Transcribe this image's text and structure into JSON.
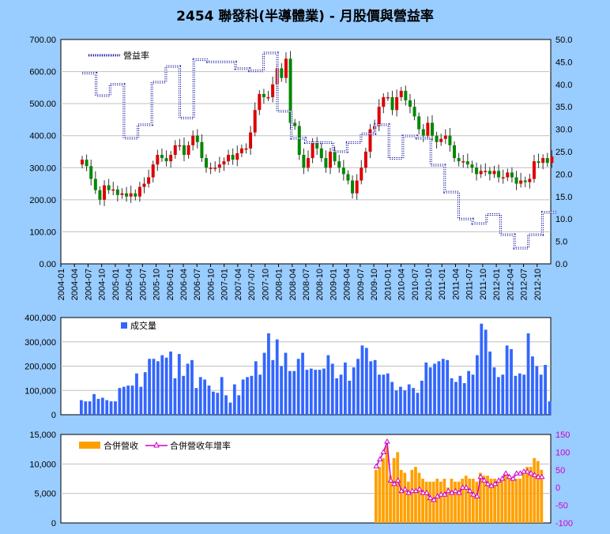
{
  "title": "2454 聯發科(半導體業) - 月股價與營益率",
  "chart_data": [
    {
      "type": "candlestick",
      "x_labels": [
        "2004-01",
        "2004-04",
        "2004-07",
        "2004-10",
        "2005-01",
        "2005-04",
        "2005-07",
        "2005-10",
        "2006-01",
        "2006-04",
        "2006-07",
        "2006-10",
        "2007-01",
        "2007-04",
        "2007-07",
        "2007-10",
        "2008-01",
        "2008-04",
        "2008-07",
        "2008-10",
        "2009-01",
        "2009-04",
        "2009-07",
        "2009-10",
        "2010-01",
        "2010-04",
        "2010-07",
        "2010-10",
        "2011-01",
        "2011-04",
        "2011-07",
        "2011-10",
        "2012-01",
        "2012-04",
        "2012-07",
        "2012-10"
      ],
      "y_ticks": [
        "0.00",
        "100.00",
        "200.00",
        "300.00",
        "400.00",
        "500.00",
        "600.00",
        "700.00"
      ],
      "ylim": [
        0,
        700
      ],
      "y2_ticks": [
        "0.0",
        "5.0",
        "10.0",
        "15.0",
        "20.0",
        "25.0",
        "30.0",
        "35.0",
        "40.0",
        "45.0",
        "50.0"
      ],
      "y2lim": [
        0,
        50
      ],
      "colors": {
        "up": "#dd0000",
        "down": "#008800",
        "margin_line": "#000099"
      },
      "closes": [
        325,
        305,
        265,
        230,
        200,
        245,
        230,
        232,
        215,
        220,
        210,
        220,
        210,
        240,
        250,
        270,
        310,
        340,
        330,
        320,
        340,
        370,
        370,
        340,
        370,
        400,
        380,
        330,
        300,
        300,
        300,
        310,
        320,
        340,
        325,
        345,
        360,
        360,
        410,
        480,
        530,
        520,
        520,
        560,
        610,
        580,
        640,
        440,
        430,
        340,
        300,
        330,
        380,
        360,
        330,
        300,
        350,
        320,
        300,
        280,
        260,
        220,
        260,
        300,
        350,
        420,
        430,
        490,
        520,
        520,
        480,
        520,
        540,
        510,
        490,
        460,
        420,
        400,
        440,
        400,
        380,
        390,
        400,
        370,
        330,
        320,
        320,
        310,
        300,
        280,
        290,
        290,
        280,
        290,
        270,
        270,
        285,
        270,
        250,
        260,
        255,
        265,
        320,
        315,
        330,
        315,
        335
      ],
      "margin_label": "營益率",
      "margin_values": [
        42.5,
        42.5,
        37.5,
        37.5,
        40,
        40,
        28,
        28,
        31,
        31,
        40.5,
        40.5,
        44,
        44,
        32.5,
        32.5,
        45.5,
        45.5,
        45,
        45,
        45,
        45,
        43.5,
        43.5,
        43,
        43,
        47,
        47,
        34,
        34,
        28,
        28,
        27,
        27,
        27,
        27,
        25,
        25,
        27,
        27,
        29,
        29,
        31,
        31,
        23.5,
        23.5,
        28.5,
        28.5,
        28,
        28,
        22,
        22,
        16,
        16,
        10,
        10,
        9,
        9,
        11,
        11,
        6.5,
        6.5,
        3.5,
        3.5,
        6.5,
        6.5,
        11.5,
        11.5
      ]
    },
    {
      "type": "bar",
      "label": "成交量",
      "y_ticks": [
        "0",
        "100,000",
        "200,000",
        "300,000",
        "400,000"
      ],
      "ylim": [
        0,
        400000
      ],
      "color": "#3366ff",
      "values": [
        60000,
        55000,
        55000,
        85000,
        65000,
        70000,
        60000,
        55000,
        55000,
        110000,
        115000,
        120000,
        120000,
        170000,
        115000,
        175000,
        230000,
        230000,
        220000,
        245000,
        235000,
        260000,
        150000,
        250000,
        160000,
        210000,
        225000,
        110000,
        155000,
        145000,
        120000,
        95000,
        90000,
        155000,
        80000,
        50000,
        125000,
        80000,
        145000,
        155000,
        160000,
        220000,
        165000,
        255000,
        335000,
        225000,
        310000,
        200000,
        255000,
        180000,
        180000,
        230000,
        255000,
        185000,
        190000,
        185000,
        185000,
        190000,
        245000,
        210000,
        150000,
        165000,
        215000,
        140000,
        195000,
        230000,
        285000,
        275000,
        220000,
        225000,
        165000,
        165000,
        170000,
        135000,
        100000,
        115000,
        100000,
        125000,
        110000,
        90000,
        140000,
        215000,
        195000,
        210000,
        220000,
        230000,
        225000,
        150000,
        135000,
        160000,
        130000,
        180000,
        165000,
        245000,
        375000,
        350000,
        260000,
        195000,
        155000,
        165000,
        285000,
        270000,
        160000,
        170000,
        165000,
        335000,
        240000,
        200000,
        165000,
        205000,
        55000
      ]
    },
    {
      "type": "bar+line",
      "bar_label": "合併營收",
      "line_label": "合併營收年增率",
      "y_ticks": [
        "0",
        "5,000",
        "10,000",
        "15,000"
      ],
      "ylim": [
        0,
        15000
      ],
      "y2_ticks": [
        "-100",
        "-50",
        "0",
        "50",
        "100",
        "150"
      ],
      "y2lim": [
        -100,
        150
      ],
      "bar_color": "#ffa000",
      "line_color": "#cc00cc",
      "revenue": [
        9000,
        9500,
        11000,
        13000,
        8000,
        11000,
        12000,
        9000,
        8500,
        7000,
        9000,
        9500,
        8500,
        7500,
        7000,
        7000,
        7000,
        7500,
        7000,
        7500,
        6000,
        7500,
        7000,
        7000,
        7500,
        8000,
        7500,
        7500,
        7000,
        8500,
        8000,
        8000,
        7500,
        7500,
        7000,
        7500,
        8500,
        8000,
        7500,
        7500,
        7500,
        8500,
        9500,
        9500,
        11000,
        10500,
        9000
      ],
      "yoy": [
        60,
        80,
        100,
        130,
        20,
        10,
        20,
        -10,
        -5,
        -15,
        -10,
        -10,
        -5,
        -15,
        -15,
        -30,
        -35,
        -25,
        -20,
        -20,
        -10,
        -15,
        -10,
        -15,
        0,
        0,
        -10,
        -20,
        -25,
        30,
        20,
        10,
        5,
        10,
        20,
        25,
        40,
        30,
        25,
        40,
        40,
        45,
        45,
        40,
        35,
        30,
        30
      ]
    }
  ]
}
